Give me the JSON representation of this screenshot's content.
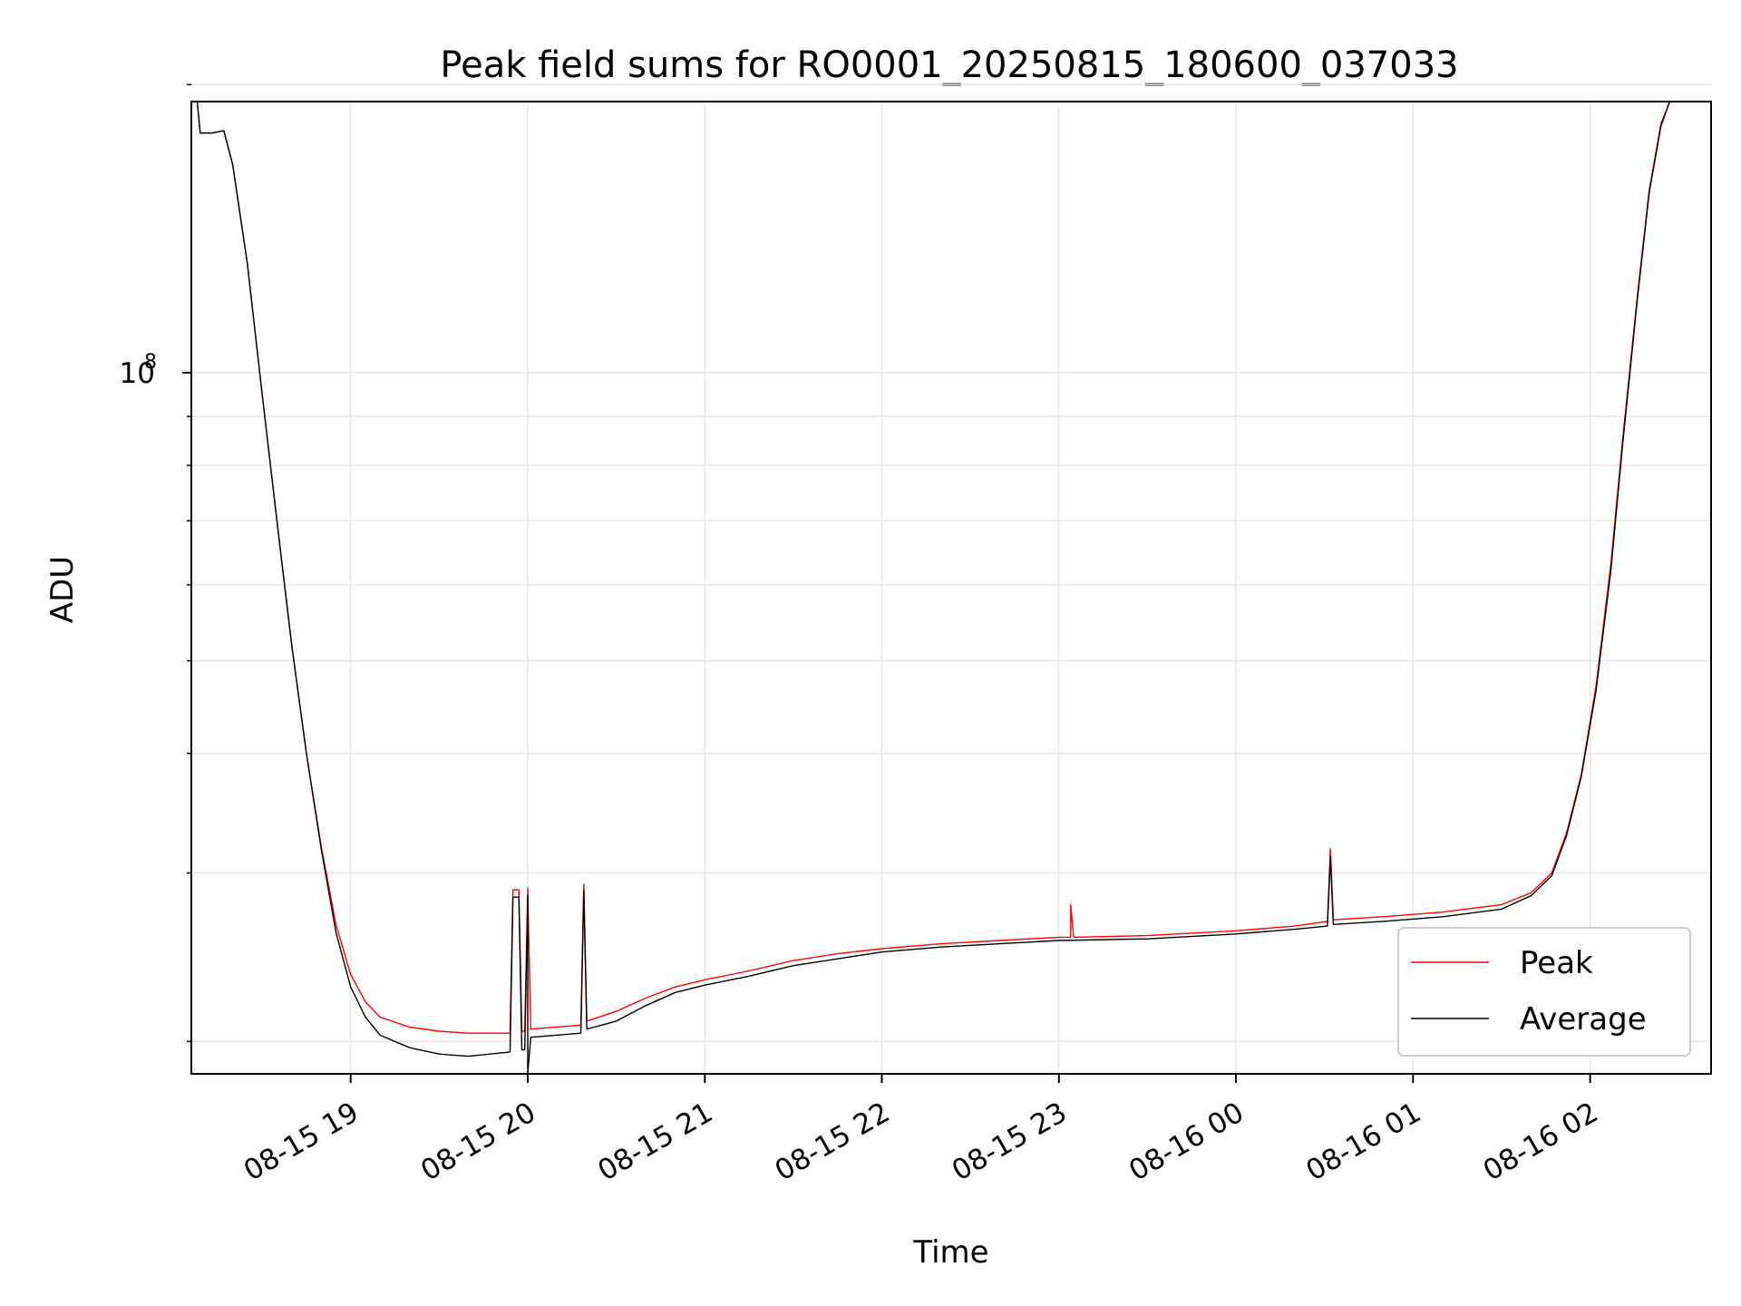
{
  "chart_data": {
    "type": "line",
    "title": "Peak field sums for RO0001_20250815_180600_037033",
    "xlabel": "Time",
    "ylabel": "ADU",
    "xlim": [
      "2025-08-15 18:06",
      "2025-08-16 02:41"
    ],
    "ylim": [
      18500000,
      192000000
    ],
    "y_scale": "log",
    "grid": true,
    "legend_position": "lower-right",
    "x_ticks": [
      {
        "t": "2025-08-15 19:00",
        "label": "08-15 19"
      },
      {
        "t": "2025-08-15 20:00",
        "label": "08-15 20"
      },
      {
        "t": "2025-08-15 21:00",
        "label": "08-15 21"
      },
      {
        "t": "2025-08-15 22:00",
        "label": "08-15 22"
      },
      {
        "t": "2025-08-15 23:00",
        "label": "08-15 23"
      },
      {
        "t": "2025-08-16 00:00",
        "label": "08-16 00"
      },
      {
        "t": "2025-08-16 01:00",
        "label": "08-16 01"
      },
      {
        "t": "2025-08-16 02:00",
        "label": "08-16 02"
      }
    ],
    "y_major_ticks": [
      {
        "value": 100000000,
        "label_base": "10",
        "label_exp": "8"
      }
    ],
    "y_minor_ticks": [
      20000000,
      30000000,
      40000000,
      50000000,
      60000000,
      70000000,
      80000000,
      90000000,
      200000000
    ],
    "series": [
      {
        "name": "Peak",
        "color": "#ff0000",
        "points": [
          [
            "2025-08-15 18:08",
            192000000
          ],
          [
            "2025-08-15 18:09",
            178000000
          ],
          [
            "2025-08-15 18:13",
            178000000
          ],
          [
            "2025-08-15 18:17",
            179000000
          ],
          [
            "2025-08-15 18:20",
            165000000
          ],
          [
            "2025-08-15 18:25",
            130000000
          ],
          [
            "2025-08-15 18:30",
            95000000
          ],
          [
            "2025-08-15 18:35",
            70000000
          ],
          [
            "2025-08-15 18:40",
            52000000
          ],
          [
            "2025-08-15 18:45",
            40000000
          ],
          [
            "2025-08-15 18:50",
            32000000
          ],
          [
            "2025-08-15 18:55",
            26500000
          ],
          [
            "2025-08-15 19:00",
            23500000
          ],
          [
            "2025-08-15 19:05",
            22000000
          ],
          [
            "2025-08-15 19:10",
            21200000
          ],
          [
            "2025-08-15 19:20",
            20700000
          ],
          [
            "2025-08-15 19:30",
            20500000
          ],
          [
            "2025-08-15 19:40",
            20400000
          ],
          [
            "2025-08-15 19:54",
            20400000
          ],
          [
            "2025-08-15 19:55",
            28800000
          ],
          [
            "2025-08-15 19:57",
            28800000
          ],
          [
            "2025-08-15 19:58",
            20500000
          ],
          [
            "2025-08-15 19:59",
            20500000
          ],
          [
            "2025-08-15 20:00",
            28900000
          ],
          [
            "2025-08-15 20:01",
            20600000
          ],
          [
            "2025-08-15 20:18",
            20800000
          ],
          [
            "2025-08-15 20:19",
            29200000
          ],
          [
            "2025-08-15 20:20",
            21000000
          ],
          [
            "2025-08-15 20:30",
            21500000
          ],
          [
            "2025-08-15 20:40",
            22200000
          ],
          [
            "2025-08-15 20:50",
            22800000
          ],
          [
            "2025-08-15 21:00",
            23200000
          ],
          [
            "2025-08-15 21:15",
            23700000
          ],
          [
            "2025-08-15 21:30",
            24300000
          ],
          [
            "2025-08-15 21:45",
            24700000
          ],
          [
            "2025-08-15 22:00",
            25000000
          ],
          [
            "2025-08-15 22:20",
            25300000
          ],
          [
            "2025-08-15 22:40",
            25500000
          ],
          [
            "2025-08-15 23:00",
            25700000
          ],
          [
            "2025-08-15 23:04",
            25700000
          ],
          [
            "2025-08-15 23:04",
            27800000
          ],
          [
            "2025-08-15 23:05",
            25700000
          ],
          [
            "2025-08-15 23:30",
            25800000
          ],
          [
            "2025-08-16 00:00",
            26100000
          ],
          [
            "2025-08-16 00:20",
            26400000
          ],
          [
            "2025-08-16 00:31",
            26700000
          ],
          [
            "2025-08-16 00:32",
            31800000
          ],
          [
            "2025-08-16 00:33",
            26800000
          ],
          [
            "2025-08-16 00:50",
            27000000
          ],
          [
            "2025-08-16 01:10",
            27300000
          ],
          [
            "2025-08-16 01:30",
            27800000
          ],
          [
            "2025-08-16 01:40",
            28600000
          ],
          [
            "2025-08-16 01:47",
            30000000
          ],
          [
            "2025-08-16 01:52",
            33000000
          ],
          [
            "2025-08-16 01:57",
            38000000
          ],
          [
            "2025-08-16 02:02",
            47000000
          ],
          [
            "2025-08-16 02:07",
            63000000
          ],
          [
            "2025-08-16 02:11",
            85000000
          ],
          [
            "2025-08-16 02:16",
            120000000
          ],
          [
            "2025-08-16 02:20",
            155000000
          ],
          [
            "2025-08-16 02:24",
            182000000
          ],
          [
            "2025-08-16 02:27",
            192000000
          ],
          [
            "2025-08-16 02:41",
            192000000
          ]
        ]
      },
      {
        "name": "Average",
        "color": "#000000",
        "points": [
          [
            "2025-08-15 18:08",
            192000000
          ],
          [
            "2025-08-15 18:09",
            178000000
          ],
          [
            "2025-08-15 18:13",
            178000000
          ],
          [
            "2025-08-15 18:17",
            179000000
          ],
          [
            "2025-08-15 18:20",
            165000000
          ],
          [
            "2025-08-15 18:25",
            130000000
          ],
          [
            "2025-08-15 18:30",
            95000000
          ],
          [
            "2025-08-15 18:35",
            70000000
          ],
          [
            "2025-08-15 18:40",
            52000000
          ],
          [
            "2025-08-15 18:45",
            40000000
          ],
          [
            "2025-08-15 18:50",
            31800000
          ],
          [
            "2025-08-15 18:55",
            26000000
          ],
          [
            "2025-08-15 19:00",
            22800000
          ],
          [
            "2025-08-15 19:05",
            21200000
          ],
          [
            "2025-08-15 19:10",
            20300000
          ],
          [
            "2025-08-15 19:20",
            19700000
          ],
          [
            "2025-08-15 19:30",
            19400000
          ],
          [
            "2025-08-15 19:40",
            19300000
          ],
          [
            "2025-08-15 19:54",
            19500000
          ],
          [
            "2025-08-15 19:55",
            28300000
          ],
          [
            "2025-08-15 19:57",
            28300000
          ],
          [
            "2025-08-15 19:58",
            19600000
          ],
          [
            "2025-08-15 19:59",
            19600000
          ],
          [
            "2025-08-15 20:00",
            28400000
          ],
          [
            "2025-08-15 20:00",
            18500000
          ],
          [
            "2025-08-15 20:01",
            20200000
          ],
          [
            "2025-08-15 20:18",
            20400000
          ],
          [
            "2025-08-15 20:19",
            28800000
          ],
          [
            "2025-08-15 20:20",
            20600000
          ],
          [
            "2025-08-15 20:30",
            21000000
          ],
          [
            "2025-08-15 20:40",
            21800000
          ],
          [
            "2025-08-15 20:50",
            22500000
          ],
          [
            "2025-08-15 21:00",
            22900000
          ],
          [
            "2025-08-15 21:15",
            23400000
          ],
          [
            "2025-08-15 21:30",
            24000000
          ],
          [
            "2025-08-15 21:45",
            24400000
          ],
          [
            "2025-08-15 22:00",
            24800000
          ],
          [
            "2025-08-15 22:20",
            25100000
          ],
          [
            "2025-08-15 22:40",
            25300000
          ],
          [
            "2025-08-15 23:00",
            25500000
          ],
          [
            "2025-08-15 23:30",
            25600000
          ],
          [
            "2025-08-16 00:00",
            25900000
          ],
          [
            "2025-08-16 00:20",
            26200000
          ],
          [
            "2025-08-16 00:31",
            26400000
          ],
          [
            "2025-08-16 00:32",
            31200000
          ],
          [
            "2025-08-16 00:33",
            26500000
          ],
          [
            "2025-08-16 00:50",
            26700000
          ],
          [
            "2025-08-16 01:10",
            27000000
          ],
          [
            "2025-08-16 01:30",
            27500000
          ],
          [
            "2025-08-16 01:40",
            28400000
          ],
          [
            "2025-08-16 01:47",
            29800000
          ],
          [
            "2025-08-16 01:52",
            32800000
          ],
          [
            "2025-08-16 01:57",
            37800000
          ],
          [
            "2025-08-16 02:02",
            46500000
          ],
          [
            "2025-08-16 02:07",
            62000000
          ],
          [
            "2025-08-16 02:11",
            84000000
          ],
          [
            "2025-08-16 02:16",
            119000000
          ],
          [
            "2025-08-16 02:20",
            154000000
          ],
          [
            "2025-08-16 02:24",
            181000000
          ],
          [
            "2025-08-16 02:27",
            192000000
          ],
          [
            "2025-08-16 02:41",
            192000000
          ]
        ]
      }
    ]
  }
}
